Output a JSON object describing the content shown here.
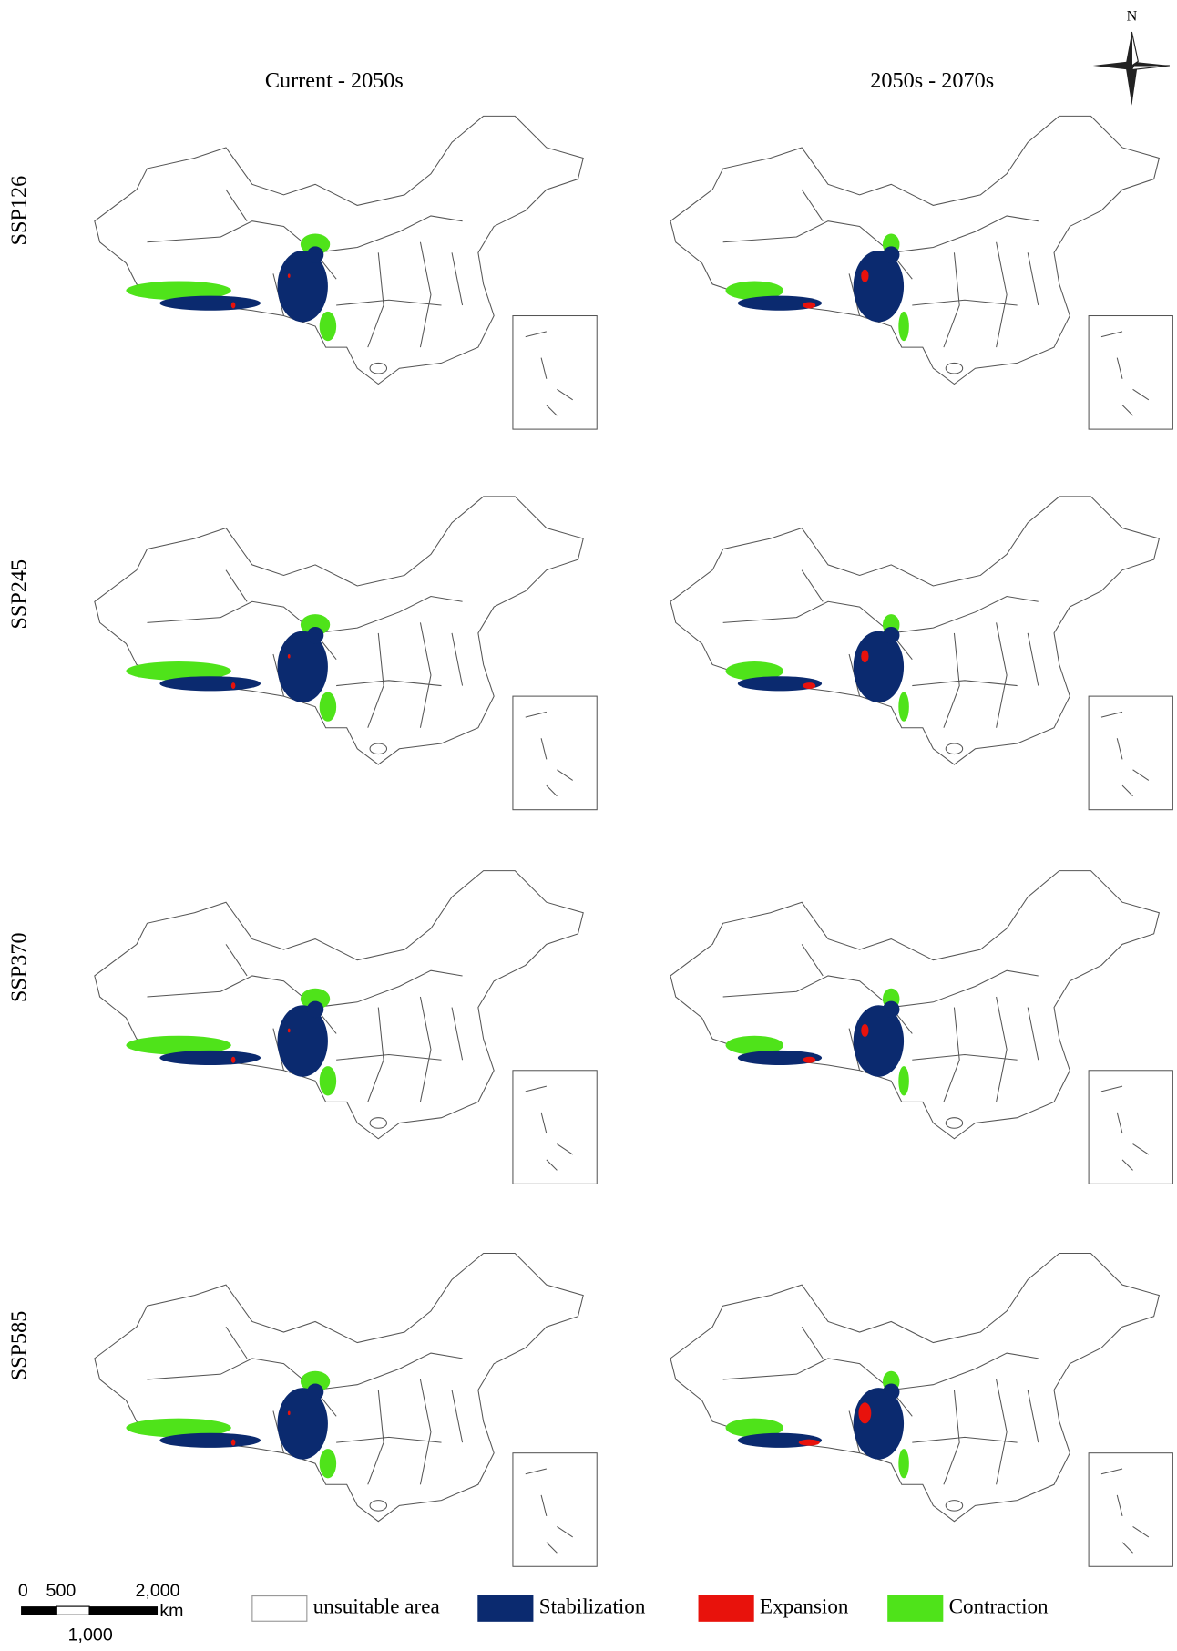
{
  "column_titles": [
    "Current - 2050s",
    "2050s - 2070s"
  ],
  "row_labels": [
    "SSP126",
    "SSP245",
    "SSP370",
    "SSP585"
  ],
  "compass": "N",
  "scale_bar": {
    "labels": [
      "0",
      "500",
      "2,000"
    ],
    "unit": "km",
    "mid_label": "1,000"
  },
  "legend": [
    {
      "label": "unsuitable area",
      "color": "#ffffff"
    },
    {
      "label": "Stabilization",
      "color": "#0b2a6f"
    },
    {
      "label": "Expansion",
      "color": "#e8120c"
    },
    {
      "label": "Contraction",
      "color": "#4fe31a"
    }
  ]
}
